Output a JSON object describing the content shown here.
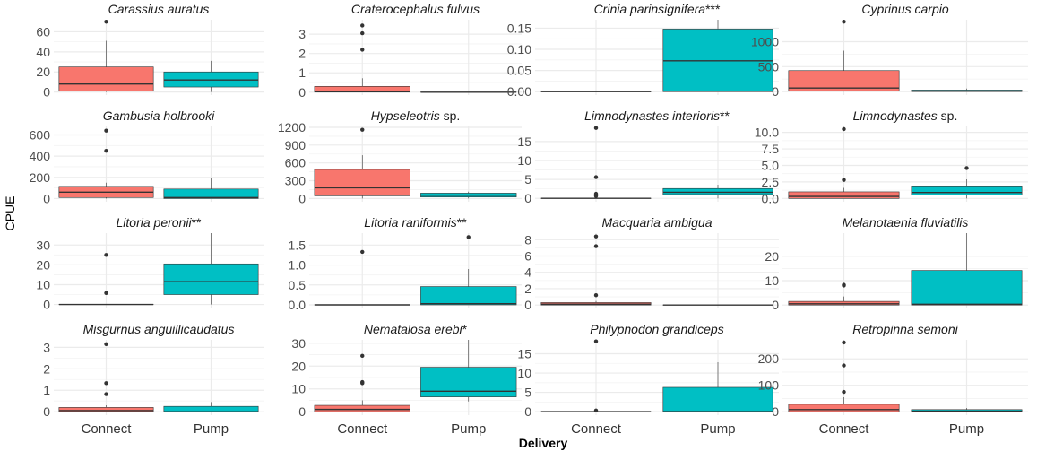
{
  "chart_data": {
    "type": "box",
    "ylabel": "CPUE",
    "xlabel": "Delivery",
    "categories": [
      "Connect",
      "Pump"
    ],
    "colors": {
      "Connect": "#F8766D",
      "Pump": "#00BFC4"
    },
    "grid": true,
    "legend": "none",
    "panels": [
      {
        "title": "Carassius auratus",
        "title_parts": [
          {
            "t": "Carassius auratus",
            "i": true
          }
        ],
        "ylim": [
          -3,
          72
        ],
        "yticks": [
          0,
          20,
          40,
          60
        ],
        "ytick_labels": [
          "0",
          "20",
          "40",
          "60"
        ],
        "boxes": [
          {
            "category": "Connect",
            "q1": 1,
            "median": 8,
            "q3": 25,
            "whisker_low": 0,
            "whisker_high": 51,
            "outliers": [
              70
            ]
          },
          {
            "category": "Pump",
            "q1": 5,
            "median": 12,
            "q3": 20,
            "whisker_low": 0,
            "whisker_high": 31,
            "outliers": []
          }
        ]
      },
      {
        "title": "Craterocephalus fulvus",
        "title_parts": [
          {
            "t": "Craterocephalus fulvus",
            "i": true
          }
        ],
        "ylim": [
          -0.15,
          3.75
        ],
        "yticks": [
          0,
          1,
          2,
          3
        ],
        "ytick_labels": [
          "0",
          "1",
          "2",
          "3"
        ],
        "boxes": [
          {
            "category": "Connect",
            "q1": 0,
            "median": 0.03,
            "q3": 0.3,
            "whisker_low": 0,
            "whisker_high": 0.72,
            "outliers": [
              2.2,
              3.05,
              3.45
            ]
          },
          {
            "category": "Pump",
            "q1": 0,
            "median": 0,
            "q3": 0,
            "whisker_low": 0,
            "whisker_high": 0,
            "outliers": []
          }
        ]
      },
      {
        "title": "Crinia parinsignifera***",
        "title_parts": [
          {
            "t": "Crinia parinsignifera",
            "i": true
          },
          {
            "t": "***",
            "i": false
          }
        ],
        "ylim": [
          -0.008,
          0.17
        ],
        "yticks": [
          0,
          0.05,
          0.1,
          0.15
        ],
        "ytick_labels": [
          "0.00",
          "0.05",
          "0.10",
          "0.15"
        ],
        "boxes": [
          {
            "category": "Connect",
            "q1": 0,
            "median": 0,
            "q3": 0,
            "whisker_low": 0,
            "whisker_high": 0,
            "outliers": []
          },
          {
            "category": "Pump",
            "q1": 0,
            "median": 0.073,
            "q3": 0.148,
            "whisker_low": 0,
            "whisker_high": 0.17,
            "outliers": []
          }
        ]
      },
      {
        "title": "Cyprinus carpio",
        "title_parts": [
          {
            "t": "Cyprinus carpio",
            "i": true
          }
        ],
        "ylim": [
          -70,
          1440
        ],
        "yticks": [
          0,
          500,
          1000
        ],
        "ytick_labels": [
          "0",
          "500",
          "1000"
        ],
        "boxes": [
          {
            "category": "Connect",
            "q1": 15,
            "median": 70,
            "q3": 420,
            "whisker_low": 0,
            "whisker_high": 820,
            "outliers": [
              1400
            ]
          },
          {
            "category": "Pump",
            "q1": 0,
            "median": 10,
            "q3": 30,
            "whisker_low": 0,
            "whisker_high": 60,
            "outliers": []
          }
        ]
      },
      {
        "title": "Gambusia holbrooki",
        "title_parts": [
          {
            "t": "Gambusia holbrooki",
            "i": true
          }
        ],
        "ylim": [
          -30,
          680
        ],
        "yticks": [
          0,
          200,
          400,
          600
        ],
        "ytick_labels": [
          "0",
          "200",
          "400",
          "600"
        ],
        "boxes": [
          {
            "category": "Connect",
            "q1": 10,
            "median": 60,
            "q3": 115,
            "whisker_low": 0,
            "whisker_high": 150,
            "outliers": [
              450,
              640
            ]
          },
          {
            "category": "Pump",
            "q1": 0,
            "median": 10,
            "q3": 90,
            "whisker_low": 0,
            "whisker_high": 190,
            "outliers": []
          }
        ]
      },
      {
        "title": "Hypseleotris sp.",
        "title_parts": [
          {
            "t": "Hypseleotris",
            "i": true
          },
          {
            "t": " sp.",
            "i": false
          }
        ],
        "ylim": [
          -55,
          1215
        ],
        "yticks": [
          0,
          300,
          600,
          900,
          1200
        ],
        "ytick_labels": [
          "0",
          "300",
          "600",
          "900",
          "1200"
        ],
        "boxes": [
          {
            "category": "Connect",
            "q1": 45,
            "median": 180,
            "q3": 490,
            "whisker_low": 0,
            "whisker_high": 730,
            "outliers": [
              1160
            ]
          },
          {
            "category": "Pump",
            "q1": 25,
            "median": 55,
            "q3": 90,
            "whisker_low": 0,
            "whisker_high": 115,
            "outliers": []
          }
        ]
      },
      {
        "title": "Limnodynastes interioris**",
        "title_parts": [
          {
            "t": "Limnodynastes interioris",
            "i": true
          },
          {
            "t": "**",
            "i": false
          }
        ],
        "ylim": [
          -0.9,
          19
        ],
        "yticks": [
          0,
          5,
          10,
          15
        ],
        "ytick_labels": [
          "0",
          "5",
          "10",
          "15"
        ],
        "boxes": [
          {
            "category": "Connect",
            "q1": 0,
            "median": 0,
            "q3": 0,
            "whisker_low": 0,
            "whisker_high": 0,
            "outliers": [
              0.6,
              1.2,
              5.6,
              18.6
            ]
          },
          {
            "category": "Pump",
            "q1": 1,
            "median": 1.6,
            "q3": 2.6,
            "whisker_low": 0,
            "whisker_high": 3.6,
            "outliers": []
          }
        ]
      },
      {
        "title": "Limnodynastes sp.",
        "title_parts": [
          {
            "t": "Limnodynastes",
            "i": true
          },
          {
            "t": " sp.",
            "i": false
          }
        ],
        "ylim": [
          -0.5,
          10.9
        ],
        "yticks": [
          0,
          2.5,
          5,
          7.5,
          10
        ],
        "ytick_labels": [
          "0.0",
          "2.5",
          "5.0",
          "7.5",
          "10.0"
        ],
        "boxes": [
          {
            "category": "Connect",
            "q1": 0,
            "median": 0.3,
            "q3": 1,
            "whisker_low": 0,
            "whisker_high": 1.6,
            "outliers": [
              2.8,
              10.5
            ]
          },
          {
            "category": "Pump",
            "q1": 0.5,
            "median": 0.9,
            "q3": 1.9,
            "whisker_low": 0,
            "whisker_high": 2.9,
            "outliers": [
              4.6
            ]
          }
        ]
      },
      {
        "title": "Litoria peronii**",
        "title_parts": [
          {
            "t": "Litoria peronii",
            "i": true
          },
          {
            "t": "**",
            "i": false
          }
        ],
        "ylim": [
          -2,
          36
        ],
        "yticks": [
          0,
          10,
          20,
          30
        ],
        "ytick_labels": [
          "0",
          "10",
          "20",
          "30"
        ],
        "boxes": [
          {
            "category": "Connect",
            "q1": 0,
            "median": 0,
            "q3": 0,
            "whisker_low": 0,
            "whisker_high": 0,
            "outliers": [
              5.8,
              25
            ]
          },
          {
            "category": "Pump",
            "q1": 5,
            "median": 11.5,
            "q3": 20.5,
            "whisker_low": 0,
            "whisker_high": 36,
            "outliers": []
          }
        ]
      },
      {
        "title": "Litoria raniformis**",
        "title_parts": [
          {
            "t": "Litoria raniformis",
            "i": true
          },
          {
            "t": "**",
            "i": false
          }
        ],
        "ylim": [
          -0.09,
          1.8
        ],
        "yticks": [
          0,
          0.5,
          1,
          1.5
        ],
        "ytick_labels": [
          "0.0",
          "0.5",
          "1.0",
          "1.5"
        ],
        "boxes": [
          {
            "category": "Connect",
            "q1": 0,
            "median": 0,
            "q3": 0,
            "whisker_low": 0,
            "whisker_high": 0,
            "outliers": [
              1.33
            ]
          },
          {
            "category": "Pump",
            "q1": 0,
            "median": 0.03,
            "q3": 0.46,
            "whisker_low": 0,
            "whisker_high": 0.9,
            "outliers": [
              1.7
            ]
          }
        ]
      },
      {
        "title": "Macquaria ambigua",
        "title_parts": [
          {
            "t": "Macquaria ambigua",
            "i": true
          }
        ],
        "ylim": [
          -0.42,
          8.8
        ],
        "yticks": [
          0,
          2,
          4,
          6,
          8
        ],
        "ytick_labels": [
          "0",
          "2",
          "4",
          "6",
          "8"
        ],
        "boxes": [
          {
            "category": "Connect",
            "q1": 0,
            "median": 0.1,
            "q3": 0.3,
            "whisker_low": 0,
            "whisker_high": 0.5,
            "outliers": [
              1.2,
              7.2,
              8.4
            ]
          },
          {
            "category": "Pump",
            "q1": 0,
            "median": 0,
            "q3": 0,
            "whisker_low": 0,
            "whisker_high": 0,
            "outliers": []
          }
        ]
      },
      {
        "title": "Melanotaenia fluviatilis",
        "title_parts": [
          {
            "t": "Melanotaenia fluviatilis",
            "i": true
          }
        ],
        "ylim": [
          -1.4,
          29.5
        ],
        "yticks": [
          0,
          10,
          20
        ],
        "ytick_labels": [
          "0",
          "10",
          "20"
        ],
        "boxes": [
          {
            "category": "Connect",
            "q1": 0,
            "median": 0.5,
            "q3": 1.5,
            "whisker_low": 0,
            "whisker_high": 3.5,
            "outliers": [
              8,
              8.3
            ]
          },
          {
            "category": "Pump",
            "q1": 0,
            "median": 0.3,
            "q3": 14.2,
            "whisker_low": 0,
            "whisker_high": 29.5,
            "outliers": []
          }
        ]
      },
      {
        "title": "Misgurnus anguillicaudatus",
        "title_parts": [
          {
            "t": "Misgurnus anguillicaudatus",
            "i": true
          }
        ],
        "ylim": [
          -0.16,
          3.35
        ],
        "yticks": [
          0,
          1,
          2,
          3
        ],
        "ytick_labels": [
          "0",
          "1",
          "2",
          "3"
        ],
        "boxes": [
          {
            "category": "Connect",
            "q1": 0,
            "median": 0.05,
            "q3": 0.2,
            "whisker_low": 0,
            "whisker_high": 0.3,
            "outliers": [
              0.82,
              1.33,
              3.15
            ]
          },
          {
            "category": "Pump",
            "q1": 0,
            "median": 0,
            "q3": 0.25,
            "whisker_low": 0,
            "whisker_high": 0.45,
            "outliers": []
          }
        ]
      },
      {
        "title": "Nematalosa erebi*",
        "title_parts": [
          {
            "t": "Nematalosa erebi",
            "i": true
          },
          {
            "t": "*",
            "i": false
          }
        ],
        "ylim": [
          -1.5,
          31.5
        ],
        "yticks": [
          0,
          10,
          20,
          30
        ],
        "ytick_labels": [
          "0",
          "10",
          "20",
          "30"
        ],
        "boxes": [
          {
            "category": "Connect",
            "q1": 0,
            "median": 1,
            "q3": 2.8,
            "whisker_low": 0,
            "whisker_high": 5,
            "outliers": [
              12.5,
              13,
              24.5
            ]
          },
          {
            "category": "Pump",
            "q1": 6.5,
            "median": 9,
            "q3": 19.5,
            "whisker_low": 4.5,
            "whisker_high": 31.5,
            "outliers": []
          }
        ]
      },
      {
        "title": "Philypnodon grandiceps",
        "title_parts": [
          {
            "t": "Philypnodon grandiceps",
            "i": true
          }
        ],
        "ylim": [
          -0.9,
          18.6
        ],
        "yticks": [
          0,
          5,
          10,
          15
        ],
        "ytick_labels": [
          "0",
          "5",
          "10",
          "15"
        ],
        "boxes": [
          {
            "category": "Connect",
            "q1": 0,
            "median": 0,
            "q3": 0,
            "whisker_low": 0,
            "whisker_high": 0,
            "outliers": [
              0.3,
              18.2
            ]
          },
          {
            "category": "Pump",
            "q1": 0,
            "median": 0,
            "q3": 6.3,
            "whisker_low": 0,
            "whisker_high": 12.8,
            "outliers": []
          }
        ]
      },
      {
        "title": "Retropinna semoni",
        "title_parts": [
          {
            "t": "Retropinna semoni",
            "i": true
          }
        ],
        "ylim": [
          -13,
          272
        ],
        "yticks": [
          0,
          100,
          200
        ],
        "ytick_labels": [
          "0",
          "100",
          "200"
        ],
        "boxes": [
          {
            "category": "Connect",
            "q1": 0,
            "median": 8,
            "q3": 28,
            "whisker_low": 0,
            "whisker_high": 55,
            "outliers": [
              75,
              175,
              262
            ]
          },
          {
            "category": "Pump",
            "q1": 0,
            "median": 2,
            "q3": 8,
            "whisker_low": 0,
            "whisker_high": 14,
            "outliers": []
          }
        ]
      }
    ]
  }
}
